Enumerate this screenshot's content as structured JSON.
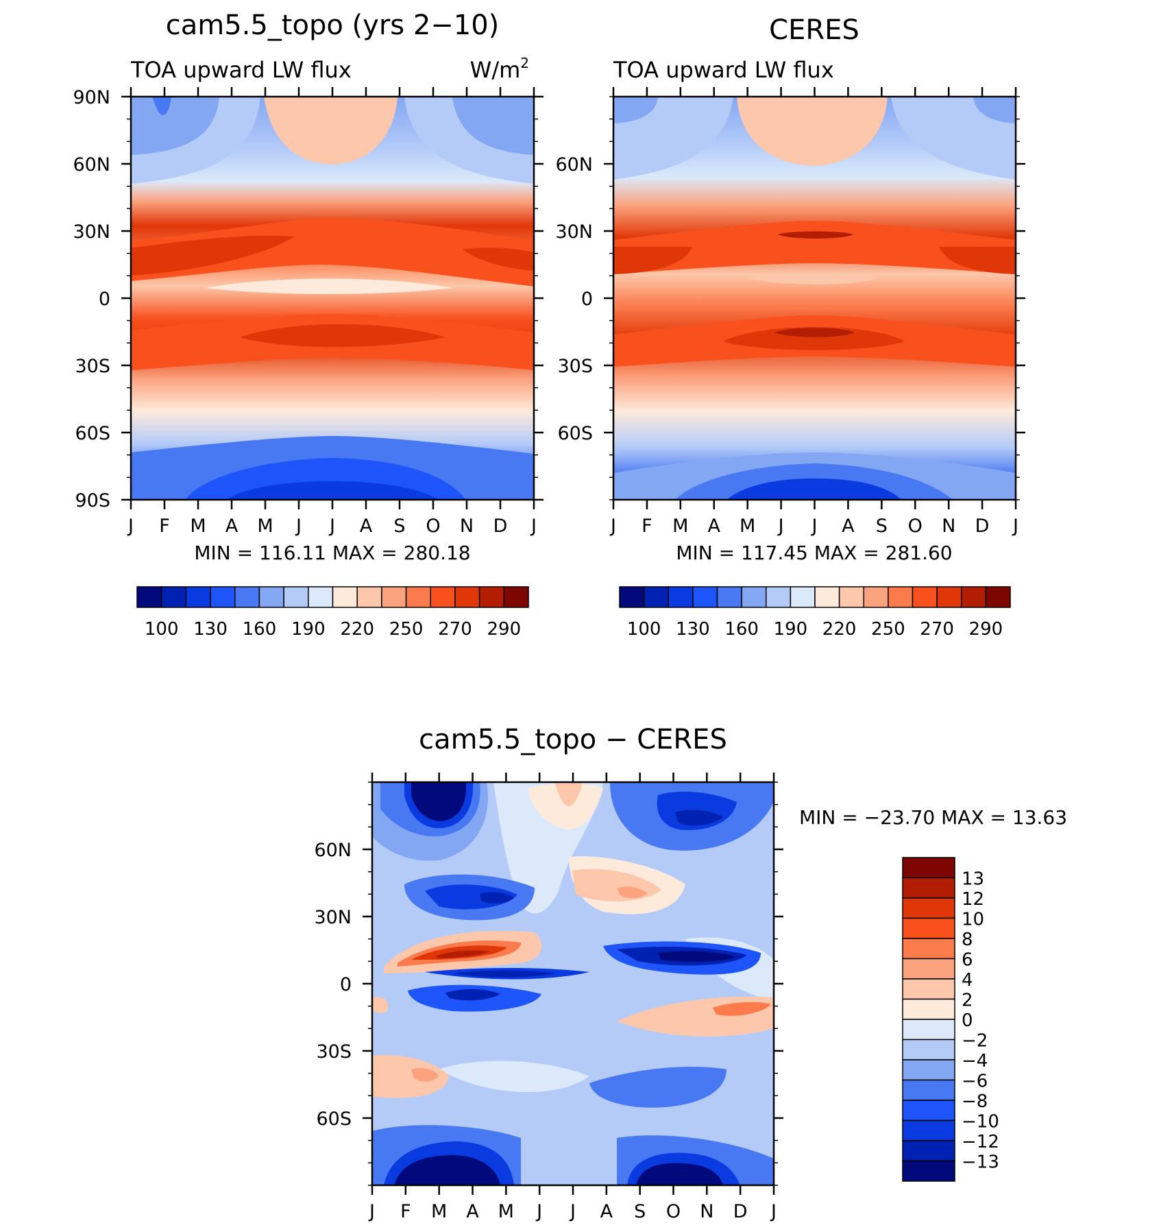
{
  "chart_data": [
    {
      "type": "heatmap",
      "title": "cam5.5_topo (yrs 2−10)",
      "subtitle_left": "TOA upward LW flux",
      "units": "W/m",
      "units_sup": "2",
      "x_ticks": [
        "J",
        "F",
        "M",
        "A",
        "M",
        "J",
        "J",
        "A",
        "S",
        "O",
        "N",
        "D",
        "J"
      ],
      "y_ticks": [
        "90N",
        "60N",
        "30N",
        "0",
        "30S",
        "60S",
        "90S"
      ],
      "ylim": [
        -90,
        90
      ],
      "stats": "MIN =  116.11  MAX =  280.18",
      "colorbar_labels": [
        "100",
        "130",
        "160",
        "190",
        "220",
        "250",
        "270",
        "290"
      ]
    },
    {
      "type": "heatmap",
      "title": "CERES",
      "subtitle_left": "TOA upward LW flux",
      "x_ticks": [
        "J",
        "F",
        "M",
        "A",
        "M",
        "J",
        "J",
        "A",
        "S",
        "O",
        "N",
        "D",
        "J"
      ],
      "y_ticks": [
        "60N",
        "30N",
        "0",
        "30S",
        "60S"
      ],
      "ylim": [
        -90,
        90
      ],
      "stats": "MIN =  117.45  MAX =  281.60",
      "colorbar_labels": [
        "100",
        "130",
        "160",
        "190",
        "220",
        "250",
        "270",
        "290"
      ]
    },
    {
      "type": "heatmap",
      "title": "cam5.5_topo − CERES",
      "x_ticks": [
        "J",
        "F",
        "M",
        "A",
        "M",
        "J",
        "J",
        "A",
        "S",
        "O",
        "N",
        "D",
        "J"
      ],
      "y_ticks": [
        "60N",
        "30N",
        "0",
        "30S",
        "60S"
      ],
      "ylim": [
        -90,
        90
      ],
      "stats": "MIN = −23.70  MAX =   13.63",
      "colorbar_labels": [
        "13",
        "12",
        "10",
        "8",
        "6",
        "4",
        "2",
        "0",
        "−2",
        "−4",
        "−6",
        "−8",
        "−10",
        "−12",
        "−13"
      ]
    }
  ],
  "colors": {
    "levels": [
      "#000a7d",
      "#0022b2",
      "#0a3be0",
      "#1e55fa",
      "#4878f2",
      "#84a7f4",
      "#b4cbf8",
      "#dbe9fb",
      "#fdeadb",
      "#fcc7aa",
      "#fba27e",
      "#fb7b4c",
      "#f8511e",
      "#e03708",
      "#b31d02",
      "#7d0600"
    ],
    "diff_levels": [
      "#7d0600",
      "#b31d02",
      "#e03708",
      "#f8511e",
      "#fb7b4c",
      "#fba27e",
      "#fcc7aa",
      "#fdeadb",
      "#dbe9fb",
      "#b4cbf8",
      "#84a7f4",
      "#4878f2",
      "#1e55fa",
      "#0a3be0",
      "#0022b2",
      "#000a7d"
    ]
  }
}
